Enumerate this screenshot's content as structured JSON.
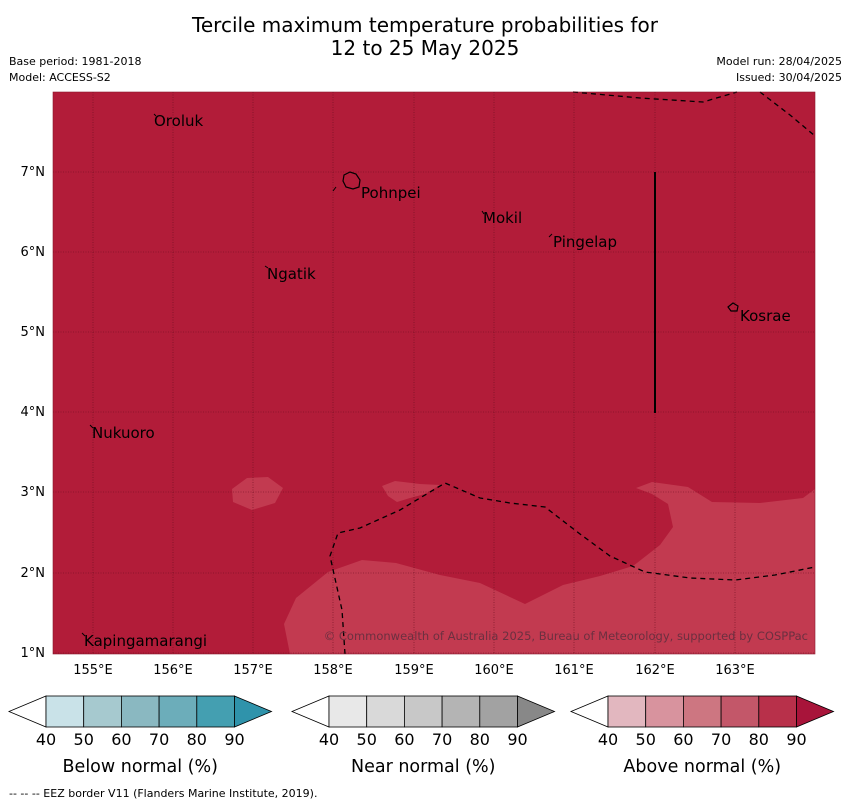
{
  "header": {
    "title_line1": "Tercile maximum temperature probabilities for",
    "title_line2": "12 to 25 May 2025",
    "base_period": "Base period: 1981-2018",
    "model": "Model: ACCESS-S2",
    "model_run": "Model run: 28/04/2025",
    "issued": "Issued: 30/04/2025"
  },
  "map": {
    "lat_labels": [
      "7°N",
      "6°N",
      "5°N",
      "4°N",
      "3°N",
      "2°N",
      "1°N"
    ],
    "lon_labels": [
      "155°E",
      "156°E",
      "157°E",
      "158°E",
      "159°E",
      "160°E",
      "161°E",
      "162°E",
      "163°E"
    ],
    "places": [
      "Oroluk",
      "Pohnpei",
      "Mokil",
      "Pingelap",
      "Ngatik",
      "Kosrae",
      "Nukuoro",
      "Kapingamarangi"
    ],
    "copyright": "© Commonwealth of Australia 2025, Bureau of Meteorology, supported by COSPPac",
    "colors": {
      "above_80": "#b21c39",
      "above_70": "#c23a50"
    }
  },
  "legends": [
    {
      "title": "Below normal (%)",
      "ticks": [
        "40",
        "50",
        "60",
        "70",
        "80",
        "90"
      ],
      "colors": [
        "#ffffff",
        "#c9e2e8",
        "#a6c9cf",
        "#8ab8c1",
        "#6cadba",
        "#449fb1",
        "#2f93ab"
      ]
    },
    {
      "title": "Near normal (%)",
      "ticks": [
        "40",
        "50",
        "60",
        "70",
        "80",
        "90"
      ],
      "colors": [
        "#ffffff",
        "#e8e8e8",
        "#d9d9d9",
        "#c8c8c8",
        "#b4b4b4",
        "#a2a2a2",
        "#888888"
      ]
    },
    {
      "title": "Above normal (%)",
      "ticks": [
        "40",
        "50",
        "60",
        "70",
        "80",
        "90"
      ],
      "colors": [
        "#ffffff",
        "#e2b7bf",
        "#d8939e",
        "#cd7681",
        "#c35769",
        "#b8304a",
        "#a8143a"
      ]
    }
  ],
  "footer": "--  --  -- EEZ border V11 (Flanders Marine Institute, 2019)."
}
